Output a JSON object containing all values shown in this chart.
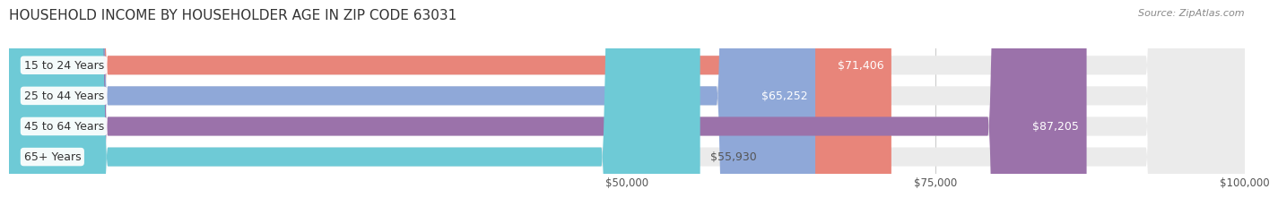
{
  "title": "HOUSEHOLD INCOME BY HOUSEHOLDER AGE IN ZIP CODE 63031",
  "source": "Source: ZipAtlas.com",
  "categories": [
    "15 to 24 Years",
    "25 to 44 Years",
    "45 to 64 Years",
    "65+ Years"
  ],
  "values": [
    71406,
    65252,
    87205,
    55930
  ],
  "bar_colors": [
    "#E8857A",
    "#8FA8D8",
    "#9B72AA",
    "#6ECAD6"
  ],
  "bar_bg_color": "#EBEBEB",
  "label_texts": [
    "$71,406",
    "$65,252",
    "$87,205",
    "$55,930"
  ],
  "xlim": [
    0,
    100000
  ],
  "xticks": [
    50000,
    75000,
    100000
  ],
  "xtick_labels": [
    "$50,000",
    "$75,000",
    "$100,000"
  ],
  "background_color": "#FFFFFF",
  "title_fontsize": 11,
  "source_fontsize": 8,
  "label_fontsize": 9
}
